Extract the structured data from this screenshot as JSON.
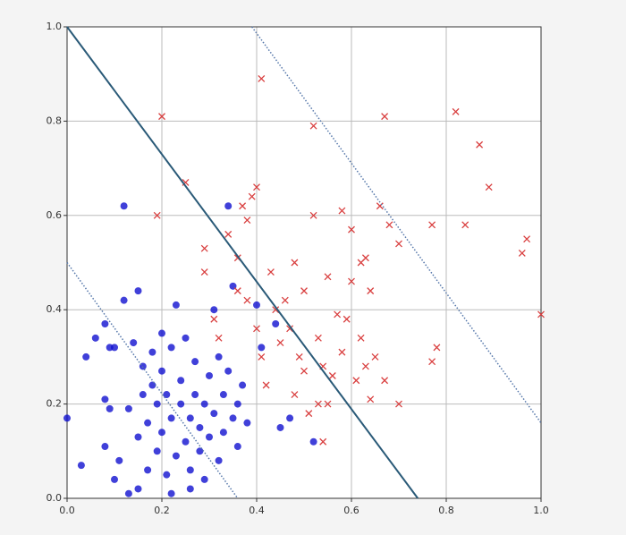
{
  "chart_data": {
    "type": "scatter",
    "xlim": [
      0,
      1
    ],
    "ylim": [
      0,
      1
    ],
    "xticks": [
      {
        "value": 0,
        "label": "0.0"
      },
      0.2,
      0.4,
      0.6,
      0.8,
      {
        "value": 1,
        "label": "1.0"
      }
    ],
    "yticks": [
      {
        "value": 0,
        "label": "0.0"
      },
      0.2,
      0.4,
      0.6,
      0.8,
      {
        "value": 1,
        "label": "1.0"
      }
    ],
    "grid": true,
    "series": [
      {
        "marker": "circle",
        "color": "#1010d0",
        "x": [
          0.0,
          0.03,
          0.04,
          0.06,
          0.08,
          0.09,
          0.1,
          0.08,
          0.08,
          0.09,
          0.1,
          0.11,
          0.12,
          0.12,
          0.13,
          0.13,
          0.14,
          0.15,
          0.15,
          0.16,
          0.16,
          0.17,
          0.17,
          0.18,
          0.18,
          0.19,
          0.19,
          0.2,
          0.2,
          0.21,
          0.21,
          0.22,
          0.22,
          0.23,
          0.23,
          0.24,
          0.24,
          0.25,
          0.25,
          0.26,
          0.26,
          0.27,
          0.27,
          0.28,
          0.28,
          0.29,
          0.29,
          0.3,
          0.3,
          0.31,
          0.31,
          0.32,
          0.32,
          0.33,
          0.33,
          0.34,
          0.34,
          0.35,
          0.35,
          0.36,
          0.36,
          0.37,
          0.38,
          0.4,
          0.41,
          0.44,
          0.45,
          0.47,
          0.52,
          0.2,
          0.26,
          0.15,
          0.22
        ],
        "y": [
          0.17,
          0.07,
          0.3,
          0.34,
          0.37,
          0.32,
          0.32,
          0.21,
          0.11,
          0.19,
          0.04,
          0.08,
          0.62,
          0.42,
          0.01,
          0.19,
          0.33,
          0.44,
          0.13,
          0.28,
          0.22,
          0.06,
          0.16,
          0.31,
          0.24,
          0.1,
          0.2,
          0.27,
          0.14,
          0.05,
          0.22,
          0.32,
          0.17,
          0.09,
          0.41,
          0.25,
          0.2,
          0.12,
          0.34,
          0.06,
          0.17,
          0.29,
          0.22,
          0.1,
          0.15,
          0.2,
          0.04,
          0.26,
          0.13,
          0.4,
          0.18,
          0.3,
          0.08,
          0.22,
          0.14,
          0.62,
          0.27,
          0.45,
          0.17,
          0.2,
          0.11,
          0.24,
          0.16,
          0.41,
          0.32,
          0.37,
          0.15,
          0.17,
          0.12,
          0.35,
          0.02,
          0.02,
          0.01
        ]
      },
      {
        "marker": "x",
        "color": "#d94040",
        "x": [
          0.19,
          0.2,
          0.25,
          0.29,
          0.29,
          0.31,
          0.34,
          0.36,
          0.37,
          0.38,
          0.39,
          0.4,
          0.41,
          0.38,
          0.4,
          0.41,
          0.42,
          0.43,
          0.44,
          0.45,
          0.46,
          0.47,
          0.48,
          0.48,
          0.49,
          0.5,
          0.5,
          0.51,
          0.52,
          0.52,
          0.53,
          0.54,
          0.55,
          0.55,
          0.56,
          0.57,
          0.58,
          0.58,
          0.59,
          0.6,
          0.6,
          0.61,
          0.62,
          0.62,
          0.63,
          0.63,
          0.64,
          0.64,
          0.65,
          0.66,
          0.67,
          0.67,
          0.68,
          0.7,
          0.7,
          0.77,
          0.77,
          0.78,
          0.82,
          0.84,
          0.87,
          0.89,
          0.96,
          0.97,
          1.0,
          0.54,
          0.32,
          0.36,
          0.53
        ],
        "y": [
          0.6,
          0.81,
          0.67,
          0.53,
          0.48,
          0.38,
          0.56,
          0.51,
          0.62,
          0.59,
          0.64,
          0.66,
          0.89,
          0.42,
          0.36,
          0.3,
          0.24,
          0.48,
          0.4,
          0.33,
          0.42,
          0.36,
          0.5,
          0.22,
          0.3,
          0.27,
          0.44,
          0.18,
          0.6,
          0.79,
          0.34,
          0.28,
          0.47,
          0.2,
          0.26,
          0.39,
          0.61,
          0.31,
          0.38,
          0.46,
          0.57,
          0.25,
          0.5,
          0.34,
          0.28,
          0.51,
          0.44,
          0.21,
          0.3,
          0.62,
          0.81,
          0.25,
          0.58,
          0.54,
          0.2,
          0.29,
          0.58,
          0.32,
          0.82,
          0.58,
          0.75,
          0.66,
          0.52,
          0.55,
          0.39,
          0.12,
          0.34,
          0.44,
          0.2
        ]
      }
    ],
    "lines": [
      {
        "style": "solid",
        "color": "#2a5a78",
        "x": [
          0,
          0.74
        ],
        "y": [
          1,
          0
        ]
      },
      {
        "style": "dotted",
        "color": "#5577aa",
        "x": [
          0.39,
          1
        ],
        "y": [
          1,
          0.16
        ]
      },
      {
        "style": "dotted",
        "color": "#5577aa",
        "x": [
          0,
          0.36
        ],
        "y": [
          0.5,
          0
        ]
      }
    ]
  }
}
